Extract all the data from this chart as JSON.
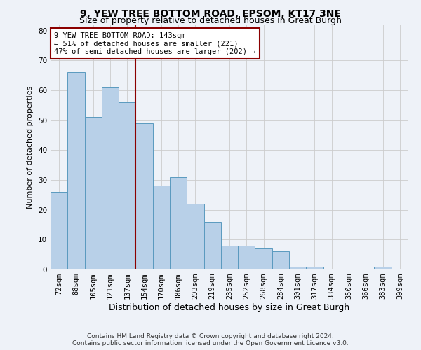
{
  "title": "9, YEW TREE BOTTOM ROAD, EPSOM, KT17 3NE",
  "subtitle": "Size of property relative to detached houses in Great Burgh",
  "xlabel": "Distribution of detached houses by size in Great Burgh",
  "ylabel": "Number of detached properties",
  "categories": [
    "72sqm",
    "88sqm",
    "105sqm",
    "121sqm",
    "137sqm",
    "154sqm",
    "170sqm",
    "186sqm",
    "203sqm",
    "219sqm",
    "235sqm",
    "252sqm",
    "268sqm",
    "284sqm",
    "301sqm",
    "317sqm",
    "334sqm",
    "350sqm",
    "366sqm",
    "383sqm",
    "399sqm"
  ],
  "values": [
    26,
    66,
    51,
    61,
    56,
    49,
    28,
    31,
    22,
    16,
    8,
    8,
    7,
    6,
    1,
    1,
    0,
    0,
    0,
    1,
    0
  ],
  "bar_color": "#b8d0e8",
  "bar_edge_color": "#5a9abf",
  "highlight_index": 4,
  "highlight_line_color": "#8b0000",
  "annotation_text": "9 YEW TREE BOTTOM ROAD: 143sqm\n← 51% of detached houses are smaller (221)\n47% of semi-detached houses are larger (202) →",
  "annotation_box_color": "white",
  "annotation_box_edge_color": "#8b0000",
  "ylim": [
    0,
    82
  ],
  "yticks": [
    0,
    10,
    20,
    30,
    40,
    50,
    60,
    70,
    80
  ],
  "grid_color": "#cccccc",
  "background_color": "#eef2f8",
  "footer_line1": "Contains HM Land Registry data © Crown copyright and database right 2024.",
  "footer_line2": "Contains public sector information licensed under the Open Government Licence v3.0.",
  "title_fontsize": 10,
  "subtitle_fontsize": 9,
  "xlabel_fontsize": 9,
  "ylabel_fontsize": 8,
  "tick_fontsize": 7.5,
  "footer_fontsize": 6.5,
  "annotation_fontsize": 7.5
}
